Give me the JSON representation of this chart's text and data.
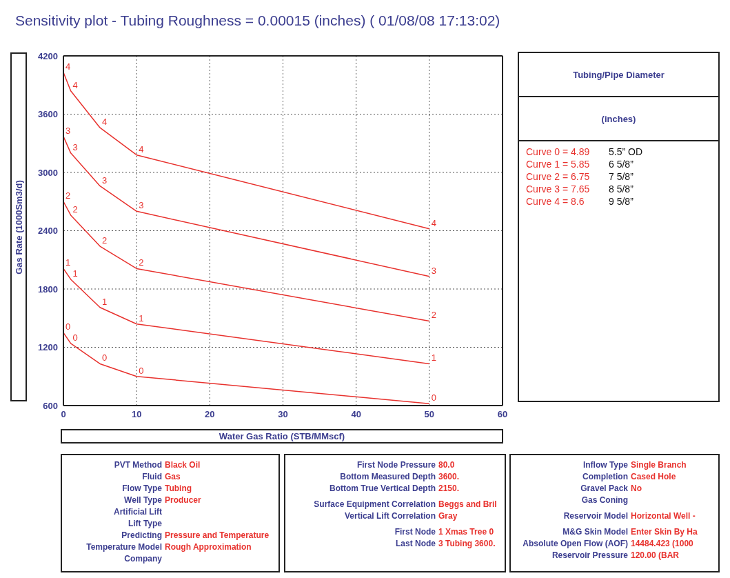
{
  "chart_data": {
    "type": "line",
    "title": "Sensitivity plot - Tubing Roughness = 0.00015 (inches) ( 01/08/08 17:13:02)",
    "xlabel": "Water Gas Ratio  (STB/MMscf)",
    "ylabel": "Gas Rate  (1000Sm3/d)",
    "grid": true,
    "line_style": "solid",
    "x": [
      0,
      1,
      5,
      10,
      50
    ],
    "xlim": [
      0,
      60
    ],
    "xticks": [
      0,
      10,
      20,
      30,
      40,
      50,
      60
    ],
    "ylim": [
      600,
      4200
    ],
    "yticks": [
      600,
      1200,
      1800,
      2400,
      3000,
      3600,
      4200
    ],
    "series": [
      {
        "name": "0",
        "color": "#e8322e",
        "values": [
          1350,
          1240,
          1030,
          900,
          620
        ]
      },
      {
        "name": "1",
        "color": "#e8322e",
        "values": [
          2010,
          1900,
          1610,
          1440,
          1030
        ]
      },
      {
        "name": "2",
        "color": "#e8322e",
        "values": [
          2700,
          2560,
          2240,
          2010,
          1470
        ]
      },
      {
        "name": "3",
        "color": "#e8322e",
        "values": [
          3370,
          3200,
          2860,
          2600,
          1930
        ]
      },
      {
        "name": "4",
        "color": "#e8322e",
        "values": [
          4030,
          3840,
          3460,
          3180,
          2420
        ]
      }
    ],
    "annotations": [
      "PVT Method",
      "Black Oil",
      "Fluid",
      "Gas",
      "Flow Type",
      "Tubing",
      "Well Type",
      "Producer",
      "Artificial Lift",
      "Lift Type",
      "Predicting",
      "Pressure and Temperature",
      "Temperature Model",
      "Rough Approximation",
      "Company",
      "First Node Pressure",
      "80.0",
      "Bottom Measured Depth",
      "3600.",
      "Bottom True Vertical Depth",
      "2150.",
      "Surface Equipment Correlation",
      "Beggs and Bril",
      "Vertical Lift Correlation",
      "Gray",
      "First Node",
      "1 Xmas Tree 0",
      "Last Node",
      "3 Tubing 3600.",
      "Inflow Type",
      "Single Branch",
      "Completion",
      "Cased Hole",
      "Gravel Pack",
      "No",
      "Gas Coning",
      "Reservoir Model",
      "Horizontal Well -",
      "M&G Skin Model",
      "Enter Skin By Ha",
      "Absolute Open Flow (AOF)",
      "14484.423 (1000",
      "Reservoir Pressure",
      "120.00 (BAR",
      "Tubing/Pipe Diameter",
      "(inches)",
      "Curve 0 = 4.89",
      "Curve 1 = 5.85",
      "Curve 2 = 6.75",
      "Curve 3 = 7.65",
      "Curve 4 = 8.6",
      "5.5” OD",
      "6 5/8”",
      "7 5/8”",
      "8 5/8”",
      "9 5/8”"
    ]
  }
}
